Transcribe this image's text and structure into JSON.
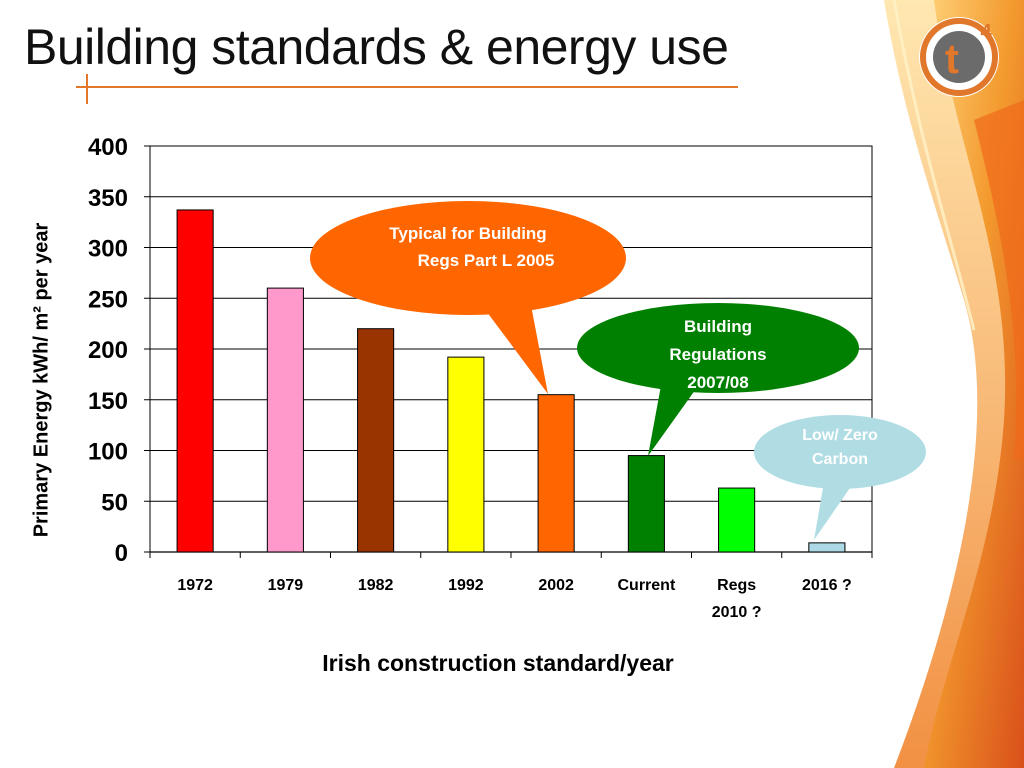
{
  "slide": {
    "title": "Building standards & energy use",
    "logo_text": "t",
    "logo_sup": "4"
  },
  "colors": {
    "accent": "#e0772b",
    "logo_ring": "#e0772b",
    "logo_inner": "#6b6b6b"
  },
  "chart_data": {
    "type": "bar",
    "title": "",
    "xlabel": "Irish construction standard/year",
    "ylabel": "Primary Energy  kWh/ m² per year",
    "ylim": [
      0,
      400
    ],
    "yticks": [
      0,
      50,
      100,
      150,
      200,
      250,
      300,
      350,
      400
    ],
    "grid": true,
    "categories": [
      "1972",
      "1979",
      "1982",
      "1992",
      "2002",
      "Current",
      "Regs 2010 ?",
      "2016 ?"
    ],
    "category_lines": [
      [
        "1972"
      ],
      [
        "1979"
      ],
      [
        "1982"
      ],
      [
        "1992"
      ],
      [
        "2002"
      ],
      [
        "Current"
      ],
      [
        "Regs",
        "2010 ?"
      ],
      [
        "2016 ?"
      ]
    ],
    "values": [
      337,
      260,
      220,
      192,
      155,
      95,
      63,
      9
    ],
    "bar_colors": [
      "#ff0000",
      "#ff99cc",
      "#993300",
      "#ffff00",
      "#ff6600",
      "#008000",
      "#00ff00",
      "#add8e6"
    ],
    "annotations": [
      {
        "lines": [
          "Typical for Building",
          "Regs Part L 2005"
        ],
        "target_category": "2002",
        "fill": "#ff6600",
        "text_color": "#ffffff"
      },
      {
        "lines": [
          "Building",
          "Regulations",
          "2007/08"
        ],
        "target_category": "Current",
        "fill": "#008000",
        "text_color": "#ffffff"
      },
      {
        "lines": [
          "Low/ Zero",
          "Carbon"
        ],
        "target_category": "2016 ?",
        "fill": "#b0dde4",
        "text_color": "#ffffff"
      }
    ]
  }
}
